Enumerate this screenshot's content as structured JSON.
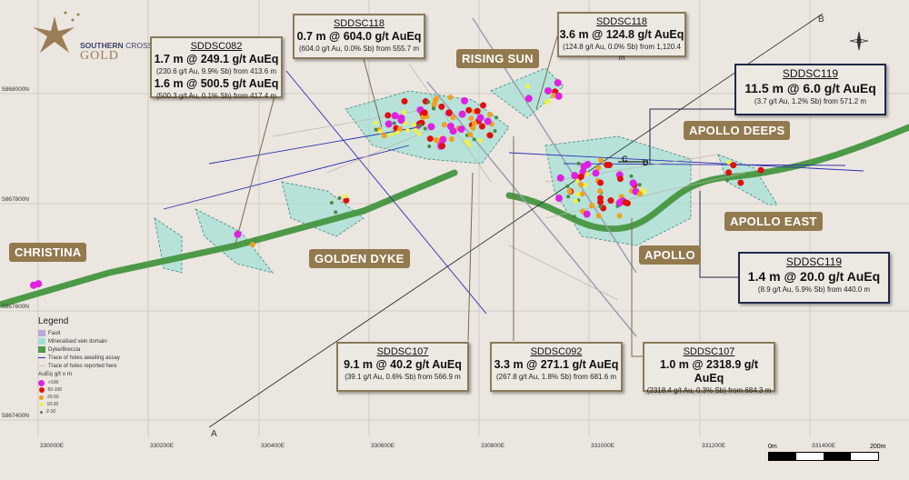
{
  "logo": {
    "text_line1_bold": "SOUTHERN",
    "text_line1": " CROSS",
    "text_line2": "GOLD"
  },
  "area_labels": [
    "CHRISTINA",
    "GOLDEN DYKE",
    "RISING SUN",
    "APOLLO DEEPS",
    "APOLLO EAST",
    "APOLLO"
  ],
  "section_line": {
    "start": "A",
    "end": "B"
  },
  "points": {
    "c": "C",
    "d": "D"
  },
  "callouts": [
    {
      "hole": "SDDSC082",
      "intervals": [
        {
          "main": "1.7 m @ 249.1 g/t AuEq",
          "detail": "(230.6 g/t Au, 9.9% Sb) from 413.6 m"
        },
        {
          "main": "1.6 m @ 500.5 g/t AuEq",
          "detail": "(500.3 g/t Au, 0.1% Sb) from 417.4 m"
        }
      ]
    },
    {
      "hole": "SDDSC118",
      "intervals": [
        {
          "main": "0.7 m @ 604.0 g/t AuEq",
          "detail": "(604.0 g/t Au, 0.0% Sb) from 555.7 m"
        }
      ]
    },
    {
      "hole": "SDDSC118",
      "intervals": [
        {
          "main": "3.6 m @ 124.8 g/t AuEq",
          "detail": "(124.8 g/t Au, 0.0% Sb) from 1,120.4 m"
        }
      ]
    },
    {
      "hole": "SDDSC119",
      "intervals": [
        {
          "main": "11.5 m @ 6.0 g/t AuEq",
          "detail": "(3.7 g/t Au, 1.2% Sb) from 571.2 m"
        }
      ]
    },
    {
      "hole": "SDDSC119",
      "intervals": [
        {
          "main": "1.4 m @ 20.0 g/t AuEq",
          "detail": "(8.9 g/t Au, 5.9% Sb) from 440.0 m"
        }
      ]
    },
    {
      "hole": "SDDSC107",
      "intervals": [
        {
          "main": "9.1 m @ 40.2 g/t AuEq",
          "detail": "(39.1 g/t Au, 0.6% Sb) from 566.9 m"
        }
      ]
    },
    {
      "hole": "SDDSC092",
      "intervals": [
        {
          "main": "3.3 m @ 271.1 g/t AuEq",
          "detail": "(267.8 g/t Au, 1.8% Sb) from 681.6 m"
        }
      ]
    },
    {
      "hole": "SDDSC107",
      "intervals": [
        {
          "main": "1.0 m @ 2318.9 g/t AuEq",
          "detail": "(2318.4 g/t Au, 0.3% Sb) from 684.3 m"
        }
      ]
    }
  ],
  "eastings": [
    "330000E",
    "330200E",
    "330400E",
    "330600E",
    "330800E",
    "331000E",
    "331200E",
    "331400E"
  ],
  "northings": [
    "5868000N",
    "5867800N",
    "5867600N",
    "5867400N"
  ],
  "legend": {
    "title": "Legend",
    "items": [
      {
        "label": "Fault",
        "color": "#b9a9d9"
      },
      {
        "label": "Mineralised vein domain",
        "color": "#9fe0d6"
      },
      {
        "label": "Dyke/Breccia",
        "color": "#4c9a48"
      },
      {
        "label": "Trace of holes awaiting assay",
        "color": "#2a2fb0"
      },
      {
        "label": "Trace of holes reported here",
        "color": "#d9c9a0"
      }
    ],
    "grade_title": "AuEq g/t x m",
    "grades": [
      {
        "label": ">100",
        "color": "#e020e0"
      },
      {
        "label": "50-100",
        "color": "#e01010"
      },
      {
        "label": "20-50",
        "color": "#f0a020"
      },
      {
        "label": "10-20",
        "color": "#f4f040"
      },
      {
        "label": "2-10",
        "color": "#4a8a40"
      }
    ]
  },
  "scale_bar": {
    "start": "0m",
    "end": "200m"
  },
  "colors": {
    "label_bg": "#927a4e",
    "callout_border": "#8a7a5c",
    "callout_border_new": "#1f2a4a",
    "dyke": "#4c9a48",
    "vein": "#9fe0d6"
  }
}
